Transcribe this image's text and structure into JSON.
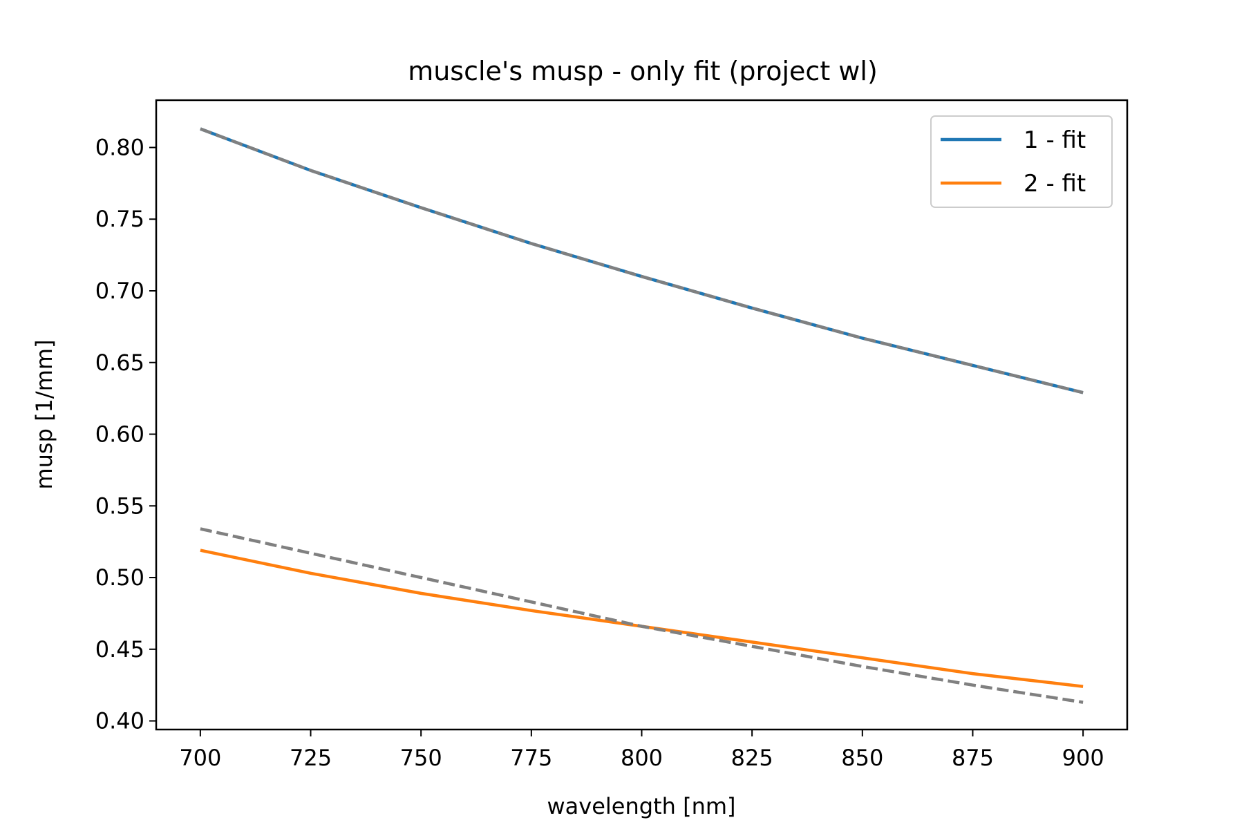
{
  "chart_data": {
    "type": "line",
    "title": "muscle's musp - only fit (project wl)",
    "xlabel": "wavelength [nm]",
    "ylabel": "musp [1/mm]",
    "xlim": [
      690,
      910
    ],
    "ylim": [
      0.394,
      0.833
    ],
    "xticks": [
      700,
      725,
      750,
      775,
      800,
      825,
      850,
      875,
      900
    ],
    "yticks": [
      0.4,
      0.45,
      0.5,
      0.55,
      0.6,
      0.65,
      0.7,
      0.75,
      0.8
    ],
    "xtick_labels": [
      "700",
      "725",
      "750",
      "775",
      "800",
      "825",
      "850",
      "875",
      "900"
    ],
    "ytick_labels": [
      "0.40",
      "0.45",
      "0.50",
      "0.55",
      "0.60",
      "0.65",
      "0.70",
      "0.75",
      "0.80"
    ],
    "grid": false,
    "legend_position": "top-right",
    "x": [
      700,
      725,
      750,
      775,
      800,
      825,
      850,
      875,
      900
    ],
    "series": [
      {
        "name": "1 - fit",
        "color": "#1f77b4",
        "style": "solid",
        "values": [
          0.813,
          0.784,
          0.758,
          0.733,
          0.71,
          0.688,
          0.667,
          0.648,
          0.629
        ]
      },
      {
        "name": "2 - fit",
        "color": "#ff7f0e",
        "style": "solid",
        "values": [
          0.519,
          0.503,
          0.489,
          0.477,
          0.466,
          0.455,
          0.444,
          0.433,
          0.424
        ]
      },
      {
        "color": "#808080",
        "style": "dashed",
        "values": [
          0.813,
          0.784,
          0.758,
          0.733,
          0.71,
          0.688,
          0.667,
          0.648,
          0.629
        ]
      },
      {
        "color": "#808080",
        "style": "dashed",
        "values": [
          0.534,
          0.517,
          0.5,
          0.483,
          0.466,
          0.452,
          0.438,
          0.425,
          0.413
        ]
      }
    ]
  }
}
